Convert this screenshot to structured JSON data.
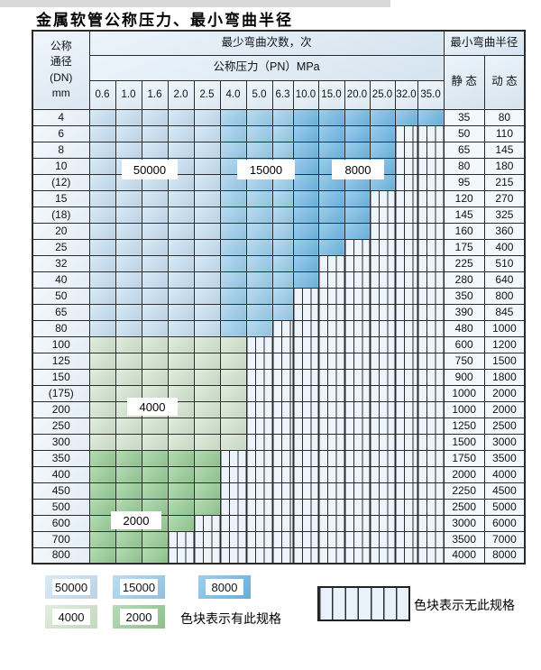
{
  "title": "金属软管公称压力、最小弯曲半径",
  "colors": {
    "cycles_50000": "#c9e2f5",
    "cycles_15000": "#9ccfee",
    "cycles_8000": "#72bae7",
    "cycles_4000": "#d4e7d0",
    "cycles_2000": "#97ce96"
  },
  "table": {
    "header": {
      "dn_label_lines": "公称\n通径\n(DN)\nmm",
      "bend_cycles_label": "最少弯曲次数，次",
      "pressure_label": "公称压力（PN）MPa",
      "min_bend_radius_label": "最小弯曲半径",
      "static_label": "静 态",
      "dynamic_label": "动 态",
      "pressure_columns": [
        "0.6",
        "1.0",
        "1.6",
        "2.0",
        "2.5",
        "4.0",
        "5.0",
        "6.3",
        "10.0",
        "15.0",
        "20.0",
        "25.0",
        "32.0",
        "35.0"
      ]
    },
    "zone_labels": {
      "z50000": "50000",
      "z15000": "15000",
      "z8000": "8000",
      "z4000": "4000",
      "z2000": "2000"
    },
    "cycle_zone_columns": {
      "50000": [
        "0.6",
        "1.0",
        "1.6",
        "2.0",
        "2.5"
      ],
      "15000": [
        "4.0",
        "5.0",
        "6.3"
      ],
      "8000": [
        "10.0",
        "15.0",
        "20.0",
        "25.0",
        "32.0",
        "35.0"
      ]
    },
    "rows": [
      {
        "dn": "4",
        "cycles_zone": "blue",
        "available_up_to": "35.0",
        "static": "35",
        "dynamic": "80"
      },
      {
        "dn": "6",
        "cycles_zone": "blue",
        "available_up_to": "25.0",
        "static": "50",
        "dynamic": "110"
      },
      {
        "dn": "8",
        "cycles_zone": "blue",
        "available_up_to": "25.0",
        "static": "65",
        "dynamic": "145"
      },
      {
        "dn": "10",
        "cycles_zone": "blue",
        "available_up_to": "25.0",
        "static": "80",
        "dynamic": "180"
      },
      {
        "dn": "(12)",
        "cycles_zone": "blue",
        "available_up_to": "25.0",
        "static": "95",
        "dynamic": "215"
      },
      {
        "dn": "15",
        "cycles_zone": "blue",
        "available_up_to": "20.0",
        "static": "120",
        "dynamic": "270"
      },
      {
        "dn": "(18)",
        "cycles_zone": "blue",
        "available_up_to": "20.0",
        "static": "145",
        "dynamic": "325"
      },
      {
        "dn": "20",
        "cycles_zone": "blue",
        "available_up_to": "20.0",
        "static": "160",
        "dynamic": "360"
      },
      {
        "dn": "25",
        "cycles_zone": "blue",
        "available_up_to": "15.0",
        "static": "175",
        "dynamic": "400"
      },
      {
        "dn": "32",
        "cycles_zone": "blue",
        "available_up_to": "10.0",
        "static": "225",
        "dynamic": "510"
      },
      {
        "dn": "40",
        "cycles_zone": "blue",
        "available_up_to": "10.0",
        "static": "280",
        "dynamic": "640"
      },
      {
        "dn": "50",
        "cycles_zone": "blue",
        "available_up_to": "6.3",
        "static": "350",
        "dynamic": "800"
      },
      {
        "dn": "65",
        "cycles_zone": "blue",
        "available_up_to": "6.3",
        "static": "390",
        "dynamic": "845"
      },
      {
        "dn": "80",
        "cycles_zone": "blue",
        "available_up_to": "5.0",
        "static": "480",
        "dynamic": "1000"
      },
      {
        "dn": "100",
        "cycles_zone": "4000",
        "available_up_to": "4.0",
        "static": "600",
        "dynamic": "1200"
      },
      {
        "dn": "125",
        "cycles_zone": "4000",
        "available_up_to": "4.0",
        "static": "750",
        "dynamic": "1500"
      },
      {
        "dn": "150",
        "cycles_zone": "4000",
        "available_up_to": "4.0",
        "static": "900",
        "dynamic": "1800"
      },
      {
        "dn": "(175)",
        "cycles_zone": "4000",
        "available_up_to": "4.0",
        "static": "1000",
        "dynamic": "2000"
      },
      {
        "dn": "200",
        "cycles_zone": "4000",
        "available_up_to": "4.0",
        "static": "1000",
        "dynamic": "2000"
      },
      {
        "dn": "250",
        "cycles_zone": "4000",
        "available_up_to": "4.0",
        "static": "1250",
        "dynamic": "2500"
      },
      {
        "dn": "300",
        "cycles_zone": "4000",
        "available_up_to": "4.0",
        "static": "1500",
        "dynamic": "3000"
      },
      {
        "dn": "350",
        "cycles_zone": "2000",
        "available_up_to": "2.5",
        "static": "1750",
        "dynamic": "3500"
      },
      {
        "dn": "400",
        "cycles_zone": "2000",
        "available_up_to": "2.5",
        "static": "2000",
        "dynamic": "4000"
      },
      {
        "dn": "450",
        "cycles_zone": "2000",
        "available_up_to": "2.5",
        "static": "2250",
        "dynamic": "4500"
      },
      {
        "dn": "500",
        "cycles_zone": "2000",
        "available_up_to": "2.5",
        "static": "2500",
        "dynamic": "5000"
      },
      {
        "dn": "600",
        "cycles_zone": "2000",
        "available_up_to": "2.0",
        "static": "3000",
        "dynamic": "6000"
      },
      {
        "dn": "700",
        "cycles_zone": "2000",
        "available_up_to": "1.6",
        "static": "3500",
        "dynamic": "7000"
      },
      {
        "dn": "800",
        "cycles_zone": "2000",
        "available_up_to": "1.6",
        "static": "4000",
        "dynamic": "8000"
      }
    ]
  },
  "legend": {
    "items": [
      {
        "label": "50000"
      },
      {
        "label": "15000"
      },
      {
        "label": "8000"
      },
      {
        "label": "4000"
      },
      {
        "label": "2000"
      }
    ],
    "has_spec_text": "色块表示有此规格",
    "no_spec_text": "色块表示无此规格"
  }
}
